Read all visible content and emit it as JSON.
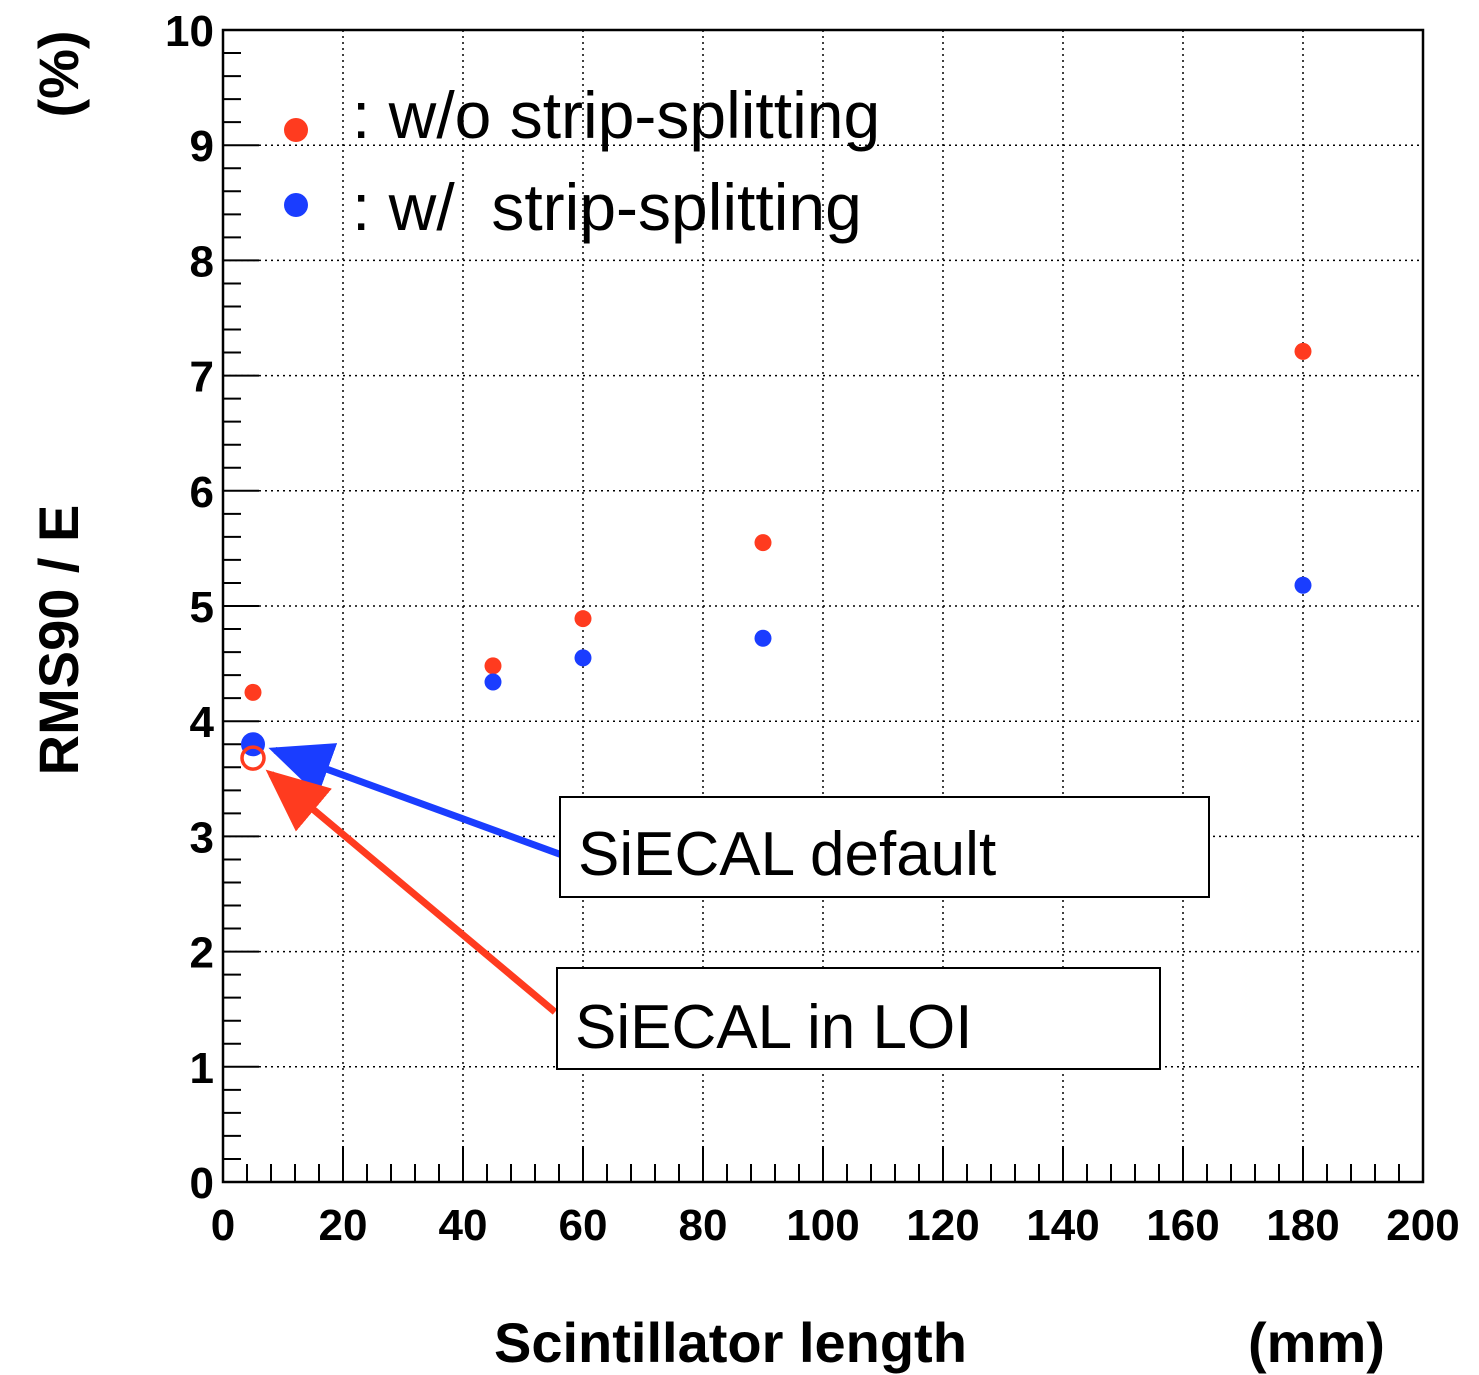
{
  "chart_data": {
    "type": "scatter",
    "xlabel": "Scintillator length",
    "xunit": "(mm)",
    "ylabel": "RMS90 / E",
    "yunit": "(%)",
    "xlim": [
      0,
      200
    ],
    "ylim": [
      0,
      10
    ],
    "x_ticks": [
      "0",
      "20",
      "40",
      "60",
      "80",
      "100",
      "120",
      "140",
      "160",
      "180",
      "200"
    ],
    "y_ticks": [
      "0",
      "1",
      "2",
      "3",
      "4",
      "5",
      "6",
      "7",
      "8",
      "9",
      "10"
    ],
    "grid": true,
    "legend_position": "top-left",
    "series": [
      {
        "name": ": w/o strip-splitting",
        "color": "#ff3b1f",
        "x": [
          5,
          45,
          60,
          90,
          180
        ],
        "y": [
          4.25,
          4.48,
          4.89,
          5.55,
          7.21
        ]
      },
      {
        "name": ": w/  strip-splitting",
        "color": "#1a3dff",
        "x": [
          5,
          45,
          60,
          90,
          180
        ],
        "y": [
          3.8,
          4.34,
          4.55,
          4.72,
          5.18
        ]
      }
    ],
    "annotations": [
      {
        "text": "SiECAL default",
        "color": "#1a3dff",
        "x": 5,
        "y": 3.8,
        "marker": "filled-circle"
      },
      {
        "text": "SiECAL in LOI",
        "color": "#ff3b1f",
        "x": 5,
        "y": 3.68,
        "marker": "open-circle"
      }
    ]
  }
}
